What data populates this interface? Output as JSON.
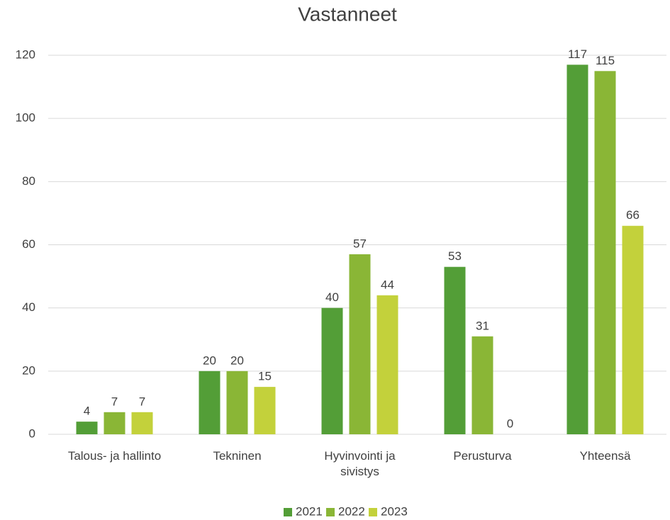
{
  "chart_data": {
    "type": "bar",
    "title": "Vastanneet",
    "categories": [
      "Talous- ja hallinto",
      "Tekninen",
      "Hyvinvointi ja sivistys",
      "Perusturva",
      "Yhteensä"
    ],
    "series": [
      {
        "name": "2021",
        "color": "#539e37",
        "values": [
          4,
          20,
          40,
          53,
          117
        ]
      },
      {
        "name": "2022",
        "color": "#8ab636",
        "values": [
          7,
          20,
          57,
          31,
          115
        ]
      },
      {
        "name": "2023",
        "color": "#c3d13b",
        "values": [
          7,
          15,
          44,
          0,
          66
        ]
      }
    ],
    "ylim": [
      0,
      120
    ],
    "yticks": [
      0,
      20,
      40,
      60,
      80,
      100,
      120
    ],
    "grid": true,
    "legend": "bottom"
  }
}
